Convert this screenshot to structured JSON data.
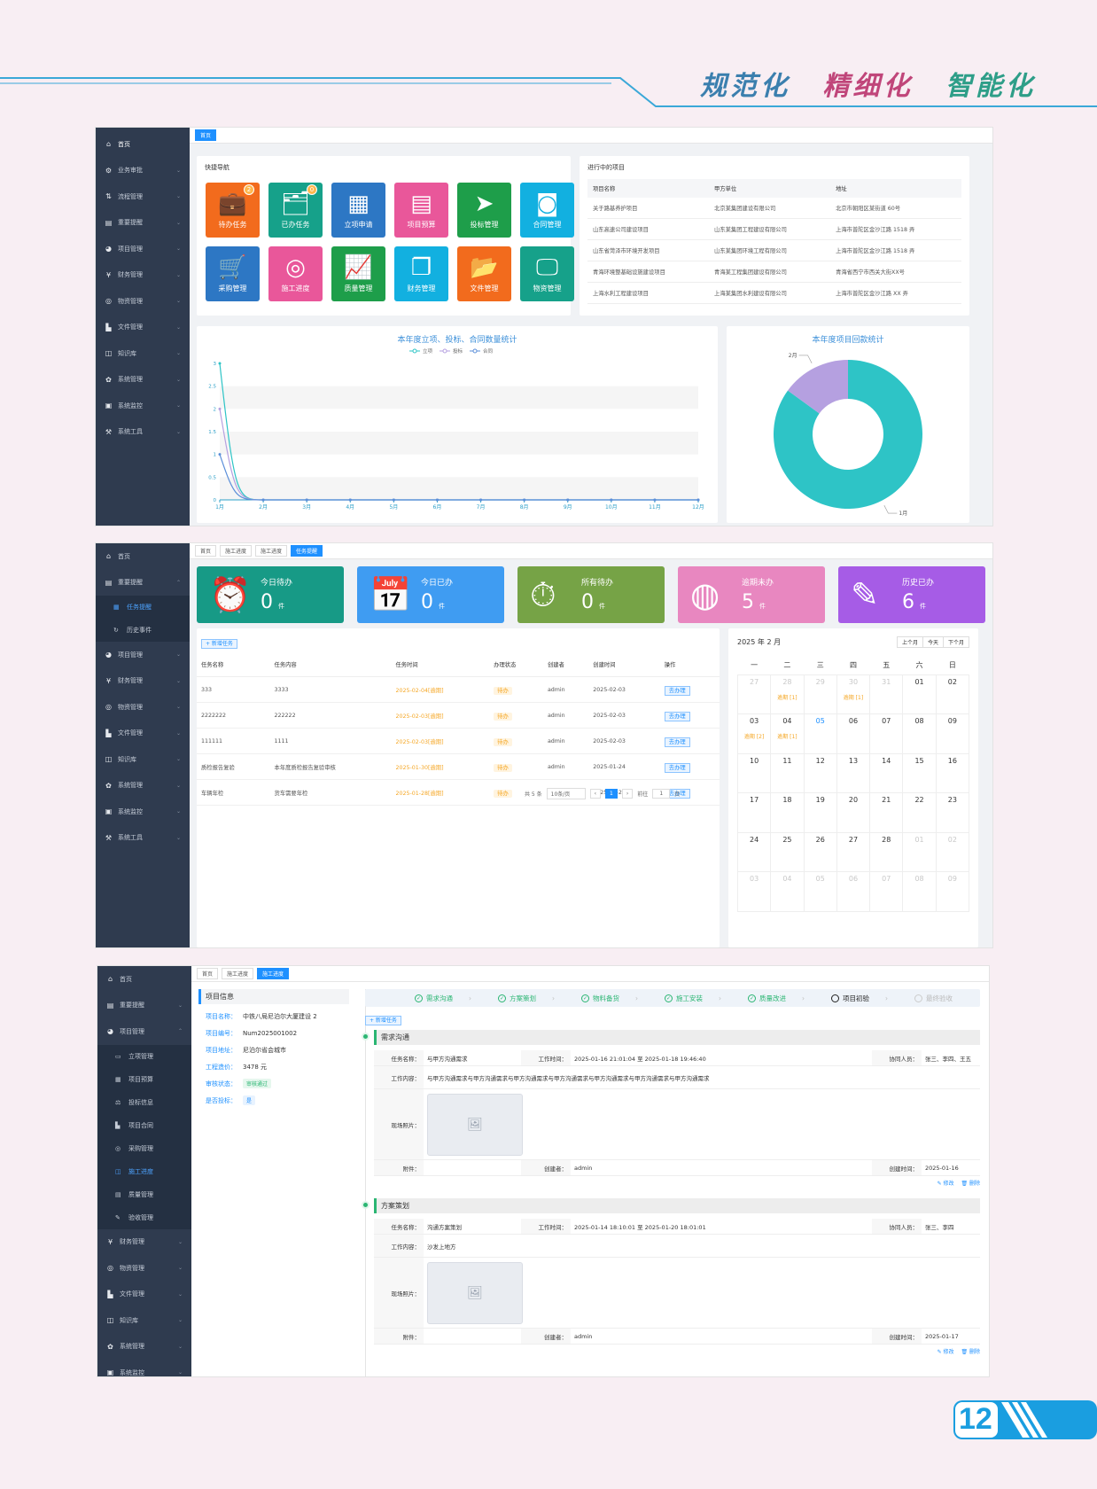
{
  "header": {
    "slogan": [
      "规范化",
      "精细化",
      "智能化"
    ]
  },
  "page_number": "12",
  "shot1": {
    "sidebar": [
      {
        "icon": "home-icon",
        "glyph": "⌂",
        "label": "首页",
        "active": true
      },
      {
        "icon": "shield-icon",
        "glyph": "⚙",
        "label": "业务审批"
      },
      {
        "icon": "flow-icon",
        "glyph": "⇅",
        "label": "流程管理"
      },
      {
        "icon": "bell-icon",
        "glyph": "▤",
        "label": "重要提醒"
      },
      {
        "icon": "project-icon",
        "glyph": "◕",
        "label": "项目管理"
      },
      {
        "icon": "yen-icon",
        "glyph": "¥",
        "label": "财务管理"
      },
      {
        "icon": "box-icon",
        "glyph": "◎",
        "label": "物资管理"
      },
      {
        "icon": "file-icon",
        "glyph": "▙",
        "label": "文件管理"
      },
      {
        "icon": "book-icon",
        "glyph": "◫",
        "label": "知识库"
      },
      {
        "icon": "gear-icon",
        "glyph": "✿",
        "label": "系统管理"
      },
      {
        "icon": "monitor-icon",
        "glyph": "▣",
        "label": "系统监控"
      },
      {
        "icon": "tool-icon",
        "glyph": "⚒",
        "label": "系统工具"
      }
    ],
    "tab": "首页",
    "quick_nav": {
      "title": "快捷导航",
      "tiles": [
        {
          "label": "待办任务",
          "glyph": "💼",
          "color": "#f26b1d",
          "badge": "2"
        },
        {
          "label": "已办任务",
          "glyph": "🗂",
          "color": "#16a18a",
          "badge": "0"
        },
        {
          "label": "立项申请",
          "glyph": "▦",
          "color": "#2d77c4"
        },
        {
          "label": "项目预算",
          "glyph": "▤",
          "color": "#e9579a"
        },
        {
          "label": "投标管理",
          "glyph": "➤",
          "color": "#1e9e4a"
        },
        {
          "label": "合同管理",
          "glyph": "◙",
          "color": "#12b0e0"
        },
        {
          "label": "采购管理",
          "glyph": "🛒",
          "color": "#2d77c4"
        },
        {
          "label": "施工进度",
          "glyph": "◎",
          "color": "#e9579a"
        },
        {
          "label": "质量管理",
          "glyph": "📈",
          "color": "#1e9e4a"
        },
        {
          "label": "财务管理",
          "glyph": "❐",
          "color": "#12b0e0"
        },
        {
          "label": "文件管理",
          "glyph": "📂",
          "color": "#f26b1d"
        },
        {
          "label": "物资管理",
          "glyph": "🖵",
          "color": "#16a18a"
        }
      ]
    },
    "projects": {
      "title": "进行中的项目",
      "headers": [
        "项目名称",
        "甲方单位",
        "地址"
      ],
      "rows": [
        [
          "关于路基养护项目",
          "北京某集团建设有限公司",
          "北京市朝阳区某街道 60号"
        ],
        [
          "山东高速公司建设项目",
          "山东某集团工程建设有限公司",
          "上海市普陀区金沙江路 1518 弄"
        ],
        [
          "山东省菏泽市环境开发项目",
          "山东某集团环境工程有限公司",
          "上海市普陀区金沙江路 1518 弄"
        ],
        [
          "青海环境整基础设施建设项目",
          "青海某工程集团建设有限公司",
          "青海省西宁市西关大街XX号"
        ],
        [
          "上海水利工程建设项目",
          "上海某集团水利建设有限公司",
          "上海市普陀区金沙江路 XX 弄"
        ]
      ]
    },
    "line_chart": {
      "title": "本年度立项、投标、合同数量统计"
    },
    "pie_chart": {
      "title": "本年度项目回款统计"
    }
  },
  "chart_data": [
    {
      "type": "line",
      "title": "本年度立项、投标、合同数量统计",
      "categories": [
        "1月",
        "2月",
        "3月",
        "4月",
        "5月",
        "6月",
        "7月",
        "8月",
        "9月",
        "10月",
        "11月",
        "12月"
      ],
      "series": [
        {
          "name": "立项",
          "color": "#2ec4c6",
          "values": [
            3,
            0,
            0,
            0,
            0,
            0,
            0,
            0,
            0,
            0,
            0,
            0
          ]
        },
        {
          "name": "投标",
          "color": "#b5a0e0",
          "values": [
            2,
            0,
            0,
            0,
            0,
            0,
            0,
            0,
            0,
            0,
            0,
            0
          ]
        },
        {
          "name": "合同",
          "color": "#5b8fd9",
          "values": [
            1,
            0,
            0,
            0,
            0,
            0,
            0,
            0,
            0,
            0,
            0,
            0
          ]
        }
      ],
      "yticks": [
        "0",
        "0.5",
        "1",
        "1.5",
        "2",
        "2.5",
        "3"
      ],
      "ylim": [
        0,
        3
      ],
      "legend": "top",
      "grid": true
    },
    {
      "type": "pie",
      "title": "本年度项目回款统计",
      "slices": [
        {
          "name": "1月",
          "value": 85,
          "color": "#2ec4c6"
        },
        {
          "name": "2月",
          "value": 15,
          "color": "#b5a0e0"
        }
      ],
      "donut": true
    }
  ],
  "shot2": {
    "sidebar": [
      {
        "icon": "home-icon",
        "glyph": "⌂",
        "label": "首页"
      },
      {
        "icon": "bell-icon",
        "glyph": "▤",
        "label": "重要提醒",
        "open": true,
        "subs": [
          {
            "glyph": "▦",
            "label": "任务提醒",
            "cur": true
          },
          {
            "glyph": "↻",
            "label": "历史事件"
          }
        ]
      },
      {
        "icon": "project-icon",
        "glyph": "◕",
        "label": "项目管理"
      },
      {
        "icon": "yen-icon",
        "glyph": "¥",
        "label": "财务管理"
      },
      {
        "icon": "box-icon",
        "glyph": "◎",
        "label": "物资管理"
      },
      {
        "icon": "file-icon",
        "glyph": "▙",
        "label": "文件管理"
      },
      {
        "icon": "book-icon",
        "glyph": "◫",
        "label": "知识库"
      },
      {
        "icon": "gear-icon",
        "glyph": "✿",
        "label": "系统管理"
      },
      {
        "icon": "monitor-icon",
        "glyph": "▣",
        "label": "系统监控"
      },
      {
        "icon": "tool-icon",
        "glyph": "⚒",
        "label": "系统工具"
      }
    ],
    "tabs": [
      "首页",
      "施工进度",
      "施工进度",
      "任务提醒"
    ],
    "stats": [
      {
        "label": "今日待办",
        "value": "0",
        "unit": "件",
        "glyph": "⏰",
        "color": "#179a86"
      },
      {
        "label": "今日已办",
        "value": "0",
        "unit": "件",
        "glyph": "📅",
        "color": "#3f9cf2"
      },
      {
        "label": "所有待办",
        "value": "0",
        "unit": "件",
        "glyph": "⏱",
        "color": "#76a346"
      },
      {
        "label": "逾期未办",
        "value": "5",
        "unit": "件",
        "glyph": "◍",
        "color": "#e887c0"
      },
      {
        "label": "历史已办",
        "value": "6",
        "unit": "件",
        "glyph": "✎",
        "color": "#a65ce6"
      }
    ],
    "add_task": "+ 新增任务",
    "task_headers": [
      "任务名称",
      "任务内容",
      "任务时间",
      "办理状态",
      "创建者",
      "创建时间",
      "操作"
    ],
    "tasks": [
      [
        "333",
        "3333",
        "2025-02-04[逾期]",
        "待办",
        "admin",
        "2025-02-03",
        "去办理"
      ],
      [
        "2222222",
        "222222",
        "2025-02-03[逾期]",
        "待办",
        "admin",
        "2025-02-03",
        "去办理"
      ],
      [
        "111111",
        "1111",
        "2025-02-03[逾期]",
        "待办",
        "admin",
        "2025-02-03",
        "去办理"
      ],
      [
        "质检报告复验",
        "本年度质检报告复验审核",
        "2025-01-30[逾期]",
        "待办",
        "admin",
        "2025-01-24",
        "去办理"
      ],
      [
        "车辆年检",
        "货车需要年检",
        "2025-01-28[逾期]",
        "待办",
        "admin",
        "2025-01-24",
        "去办理"
      ]
    ],
    "pager": {
      "total": "共 5 条",
      "size": "10条/页",
      "page": "1",
      "goto": "前往",
      "goto_val": "1",
      "goto_unit": "页"
    },
    "calendar": {
      "title": "2025 年 2 月",
      "buttons": [
        "上个月",
        "今天",
        "下个月"
      ],
      "weekdays": [
        "一",
        "二",
        "三",
        "四",
        "五",
        "六",
        "日"
      ],
      "weeks": [
        [
          {
            "d": "27",
            "m": 1
          },
          {
            "d": "28",
            "m": 1,
            "e": "逾期 [1]"
          },
          {
            "d": "29",
            "m": 1
          },
          {
            "d": "30",
            "m": 1,
            "e": "逾期 [1]"
          },
          {
            "d": "31",
            "m": 1
          },
          {
            "d": "01"
          },
          {
            "d": "02"
          }
        ],
        [
          {
            "d": "03",
            "e": "逾期 [2]"
          },
          {
            "d": "04",
            "e": "逾期 [1]"
          },
          {
            "d": "05",
            "t": 1
          },
          {
            "d": "06"
          },
          {
            "d": "07"
          },
          {
            "d": "08"
          },
          {
            "d": "09"
          }
        ],
        [
          {
            "d": "10"
          },
          {
            "d": "11"
          },
          {
            "d": "12"
          },
          {
            "d": "13"
          },
          {
            "d": "14"
          },
          {
            "d": "15"
          },
          {
            "d": "16"
          }
        ],
        [
          {
            "d": "17"
          },
          {
            "d": "18"
          },
          {
            "d": "19"
          },
          {
            "d": "20"
          },
          {
            "d": "21"
          },
          {
            "d": "22"
          },
          {
            "d": "23"
          }
        ],
        [
          {
            "d": "24"
          },
          {
            "d": "25"
          },
          {
            "d": "26"
          },
          {
            "d": "27"
          },
          {
            "d": "28"
          },
          {
            "d": "01",
            "m": 1
          },
          {
            "d": "02",
            "m": 1
          }
        ],
        [
          {
            "d": "03",
            "m": 1
          },
          {
            "d": "04",
            "m": 1
          },
          {
            "d": "05",
            "m": 1
          },
          {
            "d": "06",
            "m": 1
          },
          {
            "d": "07",
            "m": 1
          },
          {
            "d": "08",
            "m": 1
          },
          {
            "d": "09",
            "m": 1
          }
        ]
      ]
    }
  },
  "shot3": {
    "sidebar": [
      {
        "icon": "home-icon",
        "glyph": "⌂",
        "label": "首页"
      },
      {
        "icon": "bell-icon",
        "glyph": "▤",
        "label": "重要提醒"
      },
      {
        "icon": "project-icon",
        "glyph": "◕",
        "label": "项目管理",
        "open": true,
        "subs": [
          {
            "glyph": "▭",
            "label": "立项管理"
          },
          {
            "glyph": "▦",
            "label": "项目预算"
          },
          {
            "glyph": "⚖",
            "label": "投标信息"
          },
          {
            "glyph": "▙",
            "label": "项目合同"
          },
          {
            "glyph": "◎",
            "label": "采购管理"
          },
          {
            "glyph": "◫",
            "label": "施工进度",
            "cur": true
          },
          {
            "glyph": "▤",
            "label": "质量管理"
          },
          {
            "glyph": "✎",
            "label": "验收管理"
          }
        ]
      },
      {
        "icon": "yen-icon",
        "glyph": "¥",
        "label": "财务管理"
      },
      {
        "icon": "box-icon",
        "glyph": "◎",
        "label": "物资管理"
      },
      {
        "icon": "file-icon",
        "glyph": "▙",
        "label": "文件管理"
      },
      {
        "icon": "book-icon",
        "glyph": "◫",
        "label": "知识库"
      },
      {
        "icon": "gear-icon",
        "glyph": "✿",
        "label": "系统管理"
      },
      {
        "icon": "monitor-icon",
        "glyph": "▣",
        "label": "系统监控"
      }
    ],
    "tabs": [
      "首页",
      "施工进度",
      "施工进度"
    ],
    "info": {
      "title": "项目信息",
      "rows": [
        {
          "k": "项目名称：",
          "v": "中铁八局尼泊尔大厦建设 2"
        },
        {
          "k": "项目编号：",
          "v": "Num2025001002"
        },
        {
          "k": "项目地址：",
          "v": "尼泊尔省会城市"
        },
        {
          "k": "工程造价：",
          "v": "3478 元"
        },
        {
          "k": "审核状态：",
          "v": "审核通过",
          "chip": "#e6f7ee",
          "chipc": "#2bb673"
        },
        {
          "k": "是否投标：",
          "v": "是",
          "chip": "#e8f3ff",
          "chipc": "#1e90ff"
        }
      ]
    },
    "steps": [
      {
        "label": "需求沟通",
        "s": "done"
      },
      {
        "label": "方案策划",
        "s": "done"
      },
      {
        "label": "物料备货",
        "s": "done"
      },
      {
        "label": "施工安装",
        "s": "done"
      },
      {
        "label": "质量改进",
        "s": "done"
      },
      {
        "label": "项目初验",
        "s": "cur"
      },
      {
        "label": "最终验收",
        "s": "todo"
      }
    ],
    "add_task": "+ 新增任务",
    "blocks": [
      {
        "title": "需求沟通",
        "task_k": "任务名称：",
        "task": "与甲方沟通需求",
        "time_k": "工作时间：",
        "time": "2025-01-16 21:01:04 至 2025-01-18 19:46:40",
        "co_k": "协同人员：",
        "co": "张三、李四、王五",
        "content_k": "工作内容：",
        "content": "与甲方沟通需求与甲方沟通需求与甲方沟通需求与甲方沟通需求与甲方沟通需求与甲方沟通需求与甲方沟通需求",
        "photo_k": "现场照片：",
        "att_k": "附件：",
        "creator_k": "创建者：",
        "creator": "admin",
        "ctime_k": "创建时间：",
        "ctime": "2025-01-16",
        "edit": "✎ 修改",
        "del": "🗑 删除"
      },
      {
        "title": "方案策划",
        "task_k": "任务名称：",
        "task": "沟通方案策划",
        "time_k": "工作时间：",
        "time": "2025-01-14 18:10:01 至 2025-01-20 18:01:01",
        "co_k": "协同人员：",
        "co": "张三、李四",
        "content_k": "工作内容：",
        "content": "沙发上地方",
        "photo_k": "现场照片：",
        "att_k": "附件：",
        "creator_k": "创建者：",
        "creator": "admin",
        "ctime_k": "创建时间：",
        "ctime": "2025-01-17",
        "edit": "✎ 修改",
        "del": "🗑 删除"
      }
    ]
  }
}
